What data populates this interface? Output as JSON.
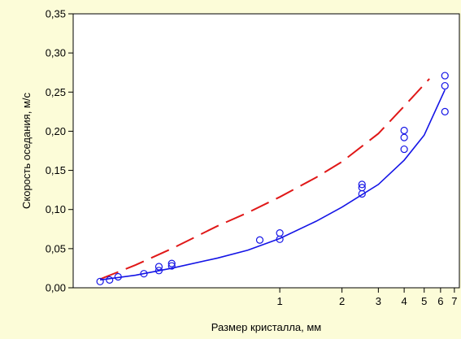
{
  "chart_data": {
    "type": "scatter",
    "xlabel": "Размер кристалла, мм",
    "ylabel": "Скорость оседания, м/с",
    "xscale": "log",
    "xlim": [
      0.1,
      7.4
    ],
    "ylim": [
      0,
      0.35
    ],
    "x_ticks": [
      1,
      2,
      3,
      4,
      5,
      6,
      7
    ],
    "y_ticks": [
      {
        "value": 0.0,
        "label": "0,00"
      },
      {
        "value": 0.05,
        "label": "0,05"
      },
      {
        "value": 0.1,
        "label": "0,10"
      },
      {
        "value": 0.15,
        "label": "0,15"
      },
      {
        "value": 0.2,
        "label": "0,20"
      },
      {
        "value": 0.25,
        "label": "0,25"
      },
      {
        "value": 0.3,
        "label": "0,30"
      },
      {
        "value": 0.35,
        "label": "0,35"
      }
    ],
    "grid": false,
    "colors": {
      "background": "#fcfcd8",
      "plot_area": "#ffffff",
      "fit_line": "#1414e6",
      "dashed_line": "#e01818",
      "markers": "#1414e6"
    },
    "series": [
      {
        "style": "scatter-open-circles",
        "points": [
          [
            0.135,
            0.008
          ],
          [
            0.15,
            0.01
          ],
          [
            0.165,
            0.014
          ],
          [
            0.22,
            0.018
          ],
          [
            0.26,
            0.022
          ],
          [
            0.26,
            0.027
          ],
          [
            0.3,
            0.028
          ],
          [
            0.3,
            0.031
          ],
          [
            0.8,
            0.061
          ],
          [
            1.0,
            0.062
          ],
          [
            1.0,
            0.07
          ],
          [
            2.5,
            0.12
          ],
          [
            2.5,
            0.128
          ],
          [
            2.5,
            0.132
          ],
          [
            4.0,
            0.177
          ],
          [
            4.0,
            0.192
          ],
          [
            4.0,
            0.201
          ],
          [
            6.3,
            0.225
          ],
          [
            6.3,
            0.258
          ],
          [
            6.3,
            0.271
          ]
        ]
      },
      {
        "style": "solid-line",
        "points": [
          [
            0.135,
            0.01
          ],
          [
            0.2,
            0.016
          ],
          [
            0.3,
            0.025
          ],
          [
            0.5,
            0.038
          ],
          [
            0.7,
            0.048
          ],
          [
            1.0,
            0.063
          ],
          [
            1.5,
            0.085
          ],
          [
            2.0,
            0.103
          ],
          [
            3.0,
            0.132
          ],
          [
            4.0,
            0.163
          ],
          [
            5.0,
            0.195
          ],
          [
            6.3,
            0.253
          ]
        ]
      },
      {
        "style": "dashed-line",
        "points": [
          [
            0.135,
            0.011
          ],
          [
            0.2,
            0.029
          ],
          [
            0.3,
            0.05
          ],
          [
            0.5,
            0.079
          ],
          [
            0.7,
            0.096
          ],
          [
            1.0,
            0.116
          ],
          [
            1.5,
            0.141
          ],
          [
            2.0,
            0.161
          ],
          [
            3.0,
            0.197
          ],
          [
            4.0,
            0.232
          ],
          [
            5.3,
            0.267
          ]
        ]
      }
    ]
  }
}
